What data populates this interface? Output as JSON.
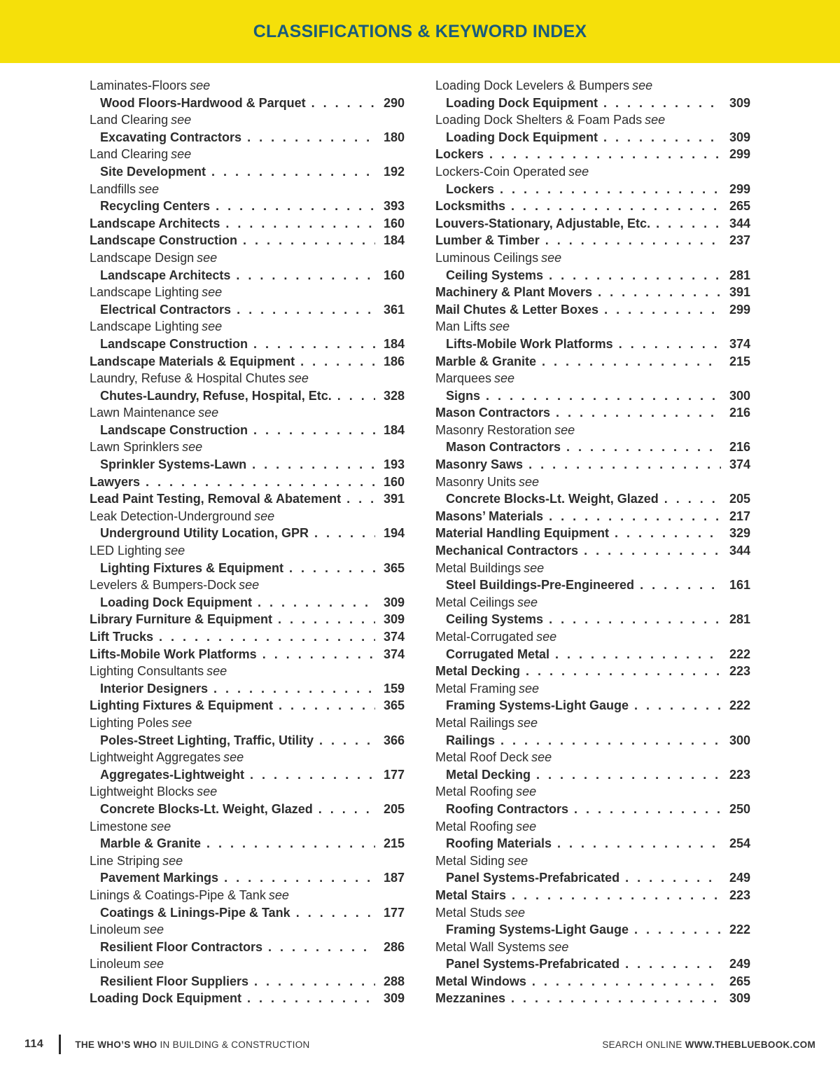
{
  "header": {
    "title": "CLASSIFICATIONS & KEYWORD INDEX"
  },
  "words": {
    "see": "see"
  },
  "colors": {
    "page_bg": "#ffffff",
    "header_bg": "#f5e00a",
    "header_text": "#1a5b7c",
    "body_text": "#2d2d2d",
    "footer_text": "#333333"
  },
  "columns": {
    "left": [
      {
        "t": "see",
        "label": "Laminates-Floors"
      },
      {
        "t": "ref",
        "label": "Wood Floors-Hardwood & Parquet",
        "page": "290"
      },
      {
        "t": "see",
        "label": "Land Clearing"
      },
      {
        "t": "ref",
        "label": "Excavating Contractors",
        "page": "180"
      },
      {
        "t": "see",
        "label": "Land Clearing"
      },
      {
        "t": "ref",
        "label": "Site Development",
        "page": "192"
      },
      {
        "t": "see",
        "label": "Landfills"
      },
      {
        "t": "ref",
        "label": "Recycling Centers",
        "page": "393"
      },
      {
        "t": "direct",
        "label": "Landscape Architects",
        "page": "160"
      },
      {
        "t": "direct",
        "label": "Landscape Construction",
        "page": "184"
      },
      {
        "t": "see",
        "label": "Landscape Design"
      },
      {
        "t": "ref",
        "label": "Landscape Architects",
        "page": "160"
      },
      {
        "t": "see",
        "label": "Landscape Lighting"
      },
      {
        "t": "ref",
        "label": "Electrical Contractors",
        "page": "361"
      },
      {
        "t": "see",
        "label": "Landscape Lighting"
      },
      {
        "t": "ref",
        "label": "Landscape Construction",
        "page": "184"
      },
      {
        "t": "direct",
        "label": "Landscape Materials & Equipment",
        "page": "186"
      },
      {
        "t": "see",
        "label": "Laundry, Refuse & Hospital Chutes"
      },
      {
        "t": "ref",
        "label": "Chutes-Laundry, Refuse, Hospital, Etc.",
        "page": "328"
      },
      {
        "t": "see",
        "label": "Lawn Maintenance"
      },
      {
        "t": "ref",
        "label": "Landscape Construction",
        "page": "184"
      },
      {
        "t": "see",
        "label": "Lawn Sprinklers"
      },
      {
        "t": "ref",
        "label": "Sprinkler Systems-Lawn",
        "page": "193"
      },
      {
        "t": "direct",
        "label": "Lawyers",
        "page": "160"
      },
      {
        "t": "direct",
        "label": "Lead Paint Testing, Removal & Abatement",
        "page": "391"
      },
      {
        "t": "see",
        "label": "Leak Detection-Underground"
      },
      {
        "t": "ref",
        "label": "Underground Utility Location, GPR",
        "page": "194"
      },
      {
        "t": "see",
        "label": "LED Lighting"
      },
      {
        "t": "ref",
        "label": "Lighting Fixtures & Equipment",
        "page": "365"
      },
      {
        "t": "see",
        "label": "Levelers & Bumpers-Dock"
      },
      {
        "t": "ref",
        "label": "Loading Dock Equipment",
        "page": "309"
      },
      {
        "t": "direct",
        "label": "Library Furniture & Equipment",
        "page": "309"
      },
      {
        "t": "direct",
        "label": "Lift Trucks",
        "page": "374"
      },
      {
        "t": "direct",
        "label": "Lifts-Mobile Work Platforms",
        "page": "374"
      },
      {
        "t": "see",
        "label": "Lighting Consultants"
      },
      {
        "t": "ref",
        "label": "Interior Designers",
        "page": "159"
      },
      {
        "t": "direct",
        "label": "Lighting Fixtures & Equipment",
        "page": "365"
      },
      {
        "t": "see",
        "label": "Lighting Poles"
      },
      {
        "t": "ref",
        "label": "Poles-Street Lighting, Traffic, Utility",
        "page": "366"
      },
      {
        "t": "see",
        "label": "Lightweight Aggregates"
      },
      {
        "t": "ref",
        "label": "Aggregates-Lightweight",
        "page": "177"
      },
      {
        "t": "see",
        "label": "Lightweight Blocks"
      },
      {
        "t": "ref",
        "label": "Concrete Blocks-Lt. Weight, Glazed",
        "page": "205"
      },
      {
        "t": "see",
        "label": "Limestone"
      },
      {
        "t": "ref",
        "label": "Marble & Granite",
        "page": "215"
      },
      {
        "t": "see",
        "label": "Line Striping"
      },
      {
        "t": "ref",
        "label": "Pavement Markings",
        "page": "187"
      },
      {
        "t": "see",
        "label": "Linings & Coatings-Pipe & Tank"
      },
      {
        "t": "ref",
        "label": "Coatings & Linings-Pipe & Tank",
        "page": "177"
      },
      {
        "t": "see",
        "label": "Linoleum"
      },
      {
        "t": "ref",
        "label": "Resilient Floor Contractors",
        "page": "286"
      },
      {
        "t": "see",
        "label": "Linoleum"
      },
      {
        "t": "ref",
        "label": "Resilient Floor Suppliers",
        "page": "288"
      },
      {
        "t": "direct",
        "label": "Loading Dock Equipment",
        "page": "309"
      }
    ],
    "right": [
      {
        "t": "see",
        "label": "Loading Dock Levelers & Bumpers"
      },
      {
        "t": "ref",
        "label": "Loading Dock Equipment",
        "page": "309"
      },
      {
        "t": "see",
        "label": "Loading Dock Shelters & Foam Pads"
      },
      {
        "t": "ref",
        "label": "Loading Dock Equipment",
        "page": "309"
      },
      {
        "t": "direct",
        "label": "Lockers",
        "page": "299"
      },
      {
        "t": "see",
        "label": "Lockers-Coin Operated"
      },
      {
        "t": "ref",
        "label": "Lockers",
        "page": "299"
      },
      {
        "t": "direct",
        "label": "Locksmiths",
        "page": "265"
      },
      {
        "t": "direct",
        "label": "Louvers-Stationary, Adjustable, Etc.",
        "page": "344"
      },
      {
        "t": "direct",
        "label": "Lumber & Timber",
        "page": "237"
      },
      {
        "t": "see",
        "label": "Luminous Ceilings"
      },
      {
        "t": "ref",
        "label": "Ceiling Systems",
        "page": "281"
      },
      {
        "t": "direct",
        "label": "Machinery & Plant Movers",
        "page": "391"
      },
      {
        "t": "direct",
        "label": "Mail Chutes & Letter Boxes",
        "page": "299"
      },
      {
        "t": "see",
        "label": "Man Lifts"
      },
      {
        "t": "ref",
        "label": "Lifts-Mobile Work Platforms",
        "page": "374"
      },
      {
        "t": "direct",
        "label": "Marble & Granite",
        "page": "215"
      },
      {
        "t": "see",
        "label": "Marquees"
      },
      {
        "t": "ref",
        "label": "Signs",
        "page": "300"
      },
      {
        "t": "direct",
        "label": "Mason Contractors",
        "page": "216"
      },
      {
        "t": "see",
        "label": "Masonry Restoration"
      },
      {
        "t": "ref",
        "label": "Mason Contractors",
        "page": "216"
      },
      {
        "t": "direct",
        "label": "Masonry Saws",
        "page": "374"
      },
      {
        "t": "see",
        "label": "Masonry Units"
      },
      {
        "t": "ref",
        "label": "Concrete Blocks-Lt. Weight, Glazed",
        "page": "205"
      },
      {
        "t": "direct",
        "label": "Masons’ Materials",
        "page": "217"
      },
      {
        "t": "direct",
        "label": "Material Handling Equipment",
        "page": "329"
      },
      {
        "t": "direct",
        "label": "Mechanical Contractors",
        "page": "344"
      },
      {
        "t": "see",
        "label": "Metal Buildings"
      },
      {
        "t": "ref",
        "label": "Steel Buildings-Pre-Engineered",
        "page": "161"
      },
      {
        "t": "see",
        "label": "Metal Ceilings"
      },
      {
        "t": "ref",
        "label": "Ceiling Systems",
        "page": "281"
      },
      {
        "t": "see",
        "label": "Metal-Corrugated"
      },
      {
        "t": "ref",
        "label": "Corrugated Metal",
        "page": "222"
      },
      {
        "t": "direct",
        "label": "Metal Decking",
        "page": "223"
      },
      {
        "t": "see",
        "label": "Metal Framing"
      },
      {
        "t": "ref",
        "label": "Framing Systems-Light Gauge",
        "page": "222"
      },
      {
        "t": "see",
        "label": "Metal Railings"
      },
      {
        "t": "ref",
        "label": "Railings",
        "page": "300"
      },
      {
        "t": "see",
        "label": "Metal Roof Deck"
      },
      {
        "t": "ref",
        "label": "Metal Decking",
        "page": "223"
      },
      {
        "t": "see",
        "label": "Metal Roofing"
      },
      {
        "t": "ref",
        "label": "Roofing Contractors",
        "page": "250"
      },
      {
        "t": "see",
        "label": "Metal Roofing"
      },
      {
        "t": "ref",
        "label": "Roofing Materials",
        "page": "254"
      },
      {
        "t": "see",
        "label": "Metal Siding"
      },
      {
        "t": "ref",
        "label": "Panel Systems-Prefabricated",
        "page": "249"
      },
      {
        "t": "direct",
        "label": "Metal Stairs",
        "page": "223"
      },
      {
        "t": "see",
        "label": "Metal Studs"
      },
      {
        "t": "ref",
        "label": "Framing Systems-Light Gauge",
        "page": "222"
      },
      {
        "t": "see",
        "label": "Metal Wall Systems"
      },
      {
        "t": "ref",
        "label": "Panel Systems-Prefabricated",
        "page": "249"
      },
      {
        "t": "direct",
        "label": "Metal Windows",
        "page": "265"
      },
      {
        "t": "direct",
        "label": "Mezzanines",
        "page": "309"
      }
    ]
  },
  "footer": {
    "page_number": "114",
    "brand_bold": "THE WHO’S WHO",
    "brand_rest": " IN BUILDING & CONSTRUCTION",
    "search_label": "SEARCH ONLINE ",
    "search_url": "WWW.THEBLUEBOOK.COM"
  }
}
